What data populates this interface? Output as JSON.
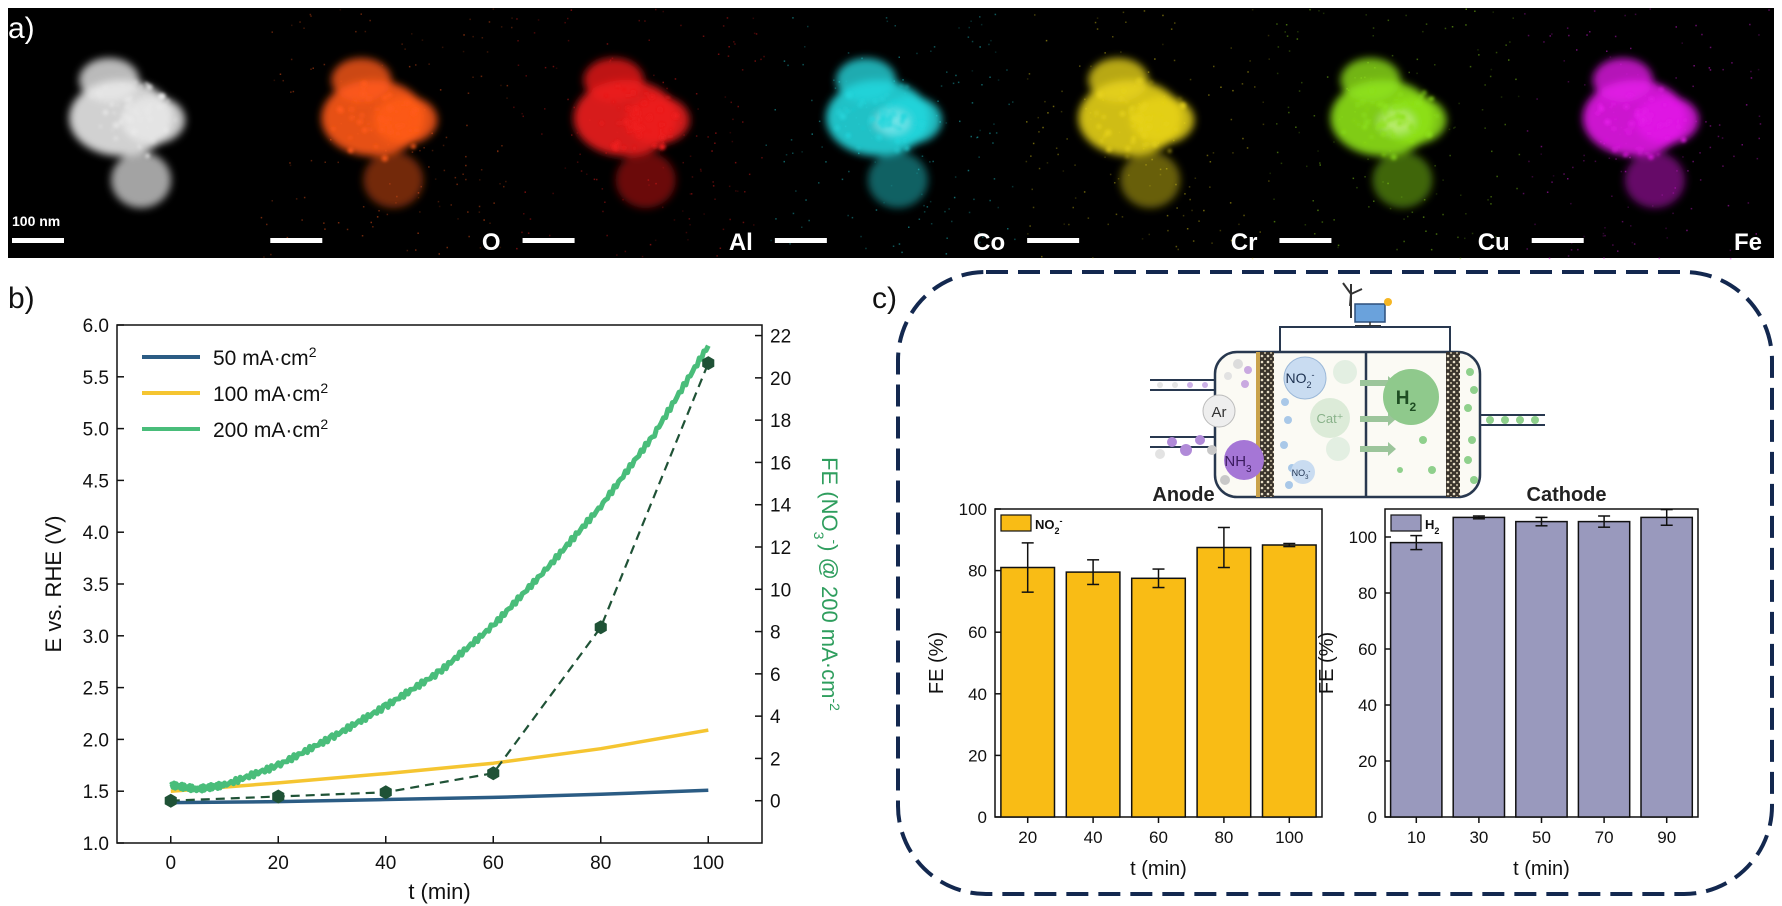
{
  "panel_a": {
    "label": "a)",
    "scale_bar_label": "100 nm",
    "maps": [
      {
        "element": "",
        "color": "#e8e8e8"
      },
      {
        "element": "O",
        "color": "#ff5a1a"
      },
      {
        "element": "Al",
        "color": "#ee1c1c"
      },
      {
        "element": "Co",
        "color": "#24d6dc"
      },
      {
        "element": "Cr",
        "color": "#e6d21a"
      },
      {
        "element": "Cu",
        "color": "#8ee21a"
      },
      {
        "element": "Fe",
        "color": "#e21ae6"
      }
    ]
  },
  "panel_b": {
    "label": "b)",
    "chart_data": {
      "type": "line",
      "xlabel": "t (min)",
      "ylabel": "E vs. RHE (V)",
      "y2label_prefix": "FE (NO",
      "y2label_sub": "3",
      "y2label_sup": "-",
      "y2label_suffix": ") @ 200 mA·cm",
      "y2label_exp": "-2",
      "xlim": [
        -10,
        110
      ],
      "ylim": [
        1.0,
        6.0
      ],
      "y2lim": [
        -2,
        22.5
      ],
      "xticks": [
        "0",
        "20",
        "40",
        "60",
        "80",
        "100"
      ],
      "yticks": [
        "1.0",
        "1.5",
        "2.0",
        "2.5",
        "3.0",
        "3.5",
        "4.0",
        "4.5",
        "5.0",
        "5.5",
        "6.0"
      ],
      "y2ticks": [
        "0",
        "2",
        "4",
        "6",
        "8",
        "10",
        "12",
        "14",
        "16",
        "18",
        "20",
        "22"
      ],
      "series": [
        {
          "name": "50 mA·cm",
          "exp": "2",
          "color": "#2b5c84",
          "x": [
            0,
            20,
            40,
            60,
            80,
            100
          ],
          "y": [
            1.39,
            1.4,
            1.42,
            1.44,
            1.47,
            1.51
          ]
        },
        {
          "name": "100 mA·cm",
          "exp": "2",
          "color": "#f5c531",
          "x": [
            0,
            20,
            40,
            60,
            80,
            100
          ],
          "y": [
            1.5,
            1.58,
            1.67,
            1.77,
            1.91,
            2.09
          ]
        },
        {
          "name": "200 mA·cm",
          "exp": "2",
          "color": "#49bd7a",
          "x": [
            0,
            5,
            10,
            20,
            30,
            40,
            50,
            60,
            70,
            80,
            90,
            100
          ],
          "y": [
            1.56,
            1.52,
            1.56,
            1.75,
            2.02,
            2.32,
            2.65,
            3.1,
            3.65,
            4.25,
            4.95,
            5.8
          ]
        }
      ],
      "fe_series": {
        "color": "#1f5236",
        "x": [
          0,
          20,
          40,
          60,
          80,
          100
        ],
        "y": [
          0,
          0.2,
          0.4,
          1.3,
          8.2,
          20.7
        ]
      }
    }
  },
  "panel_c": {
    "label": "c)",
    "schematic": {
      "no2_base": "NO",
      "no2_sub": "2",
      "no2_sup": "-",
      "ar": "Ar",
      "nh3_base": "NH",
      "nh3_sub": "3",
      "cat": "Cat⁺",
      "h2_base": "H",
      "h2_sub": "2",
      "no3_base": "NO",
      "no3_sub": "3",
      "no3_sup": "-"
    },
    "anode": {
      "chart_data": {
        "type": "bar",
        "title": "Anode",
        "legend_base": "NO",
        "legend_sub": "2",
        "legend_sup": "-",
        "color": "#f9bc15",
        "categories": [
          "20",
          "40",
          "60",
          "80",
          "100"
        ],
        "values": [
          81,
          79.5,
          77.5,
          87.5,
          88.3
        ],
        "errors": [
          8,
          4,
          3,
          6.5,
          0.5
        ],
        "xlabel": "t (min)",
        "ylabel": "FE (%)",
        "ylim": [
          0,
          100
        ],
        "yticks": [
          "0",
          "20",
          "40",
          "60",
          "80",
          "100"
        ]
      }
    },
    "cathode": {
      "chart_data": {
        "type": "bar",
        "title": "Cathode",
        "legend_base": "H",
        "legend_sub": "2",
        "color": "#9999bd",
        "categories": [
          "10",
          "30",
          "50",
          "70",
          "90"
        ],
        "values": [
          98,
          107,
          105.5,
          105.5,
          107
        ],
        "errors": [
          2.5,
          0.5,
          1.5,
          2,
          2.8
        ],
        "xlabel": "t (min)",
        "ylabel": "FE (%)",
        "ylim": [
          0,
          110
        ],
        "yticks": [
          "0",
          "20",
          "40",
          "60",
          "80",
          "100"
        ]
      }
    }
  }
}
